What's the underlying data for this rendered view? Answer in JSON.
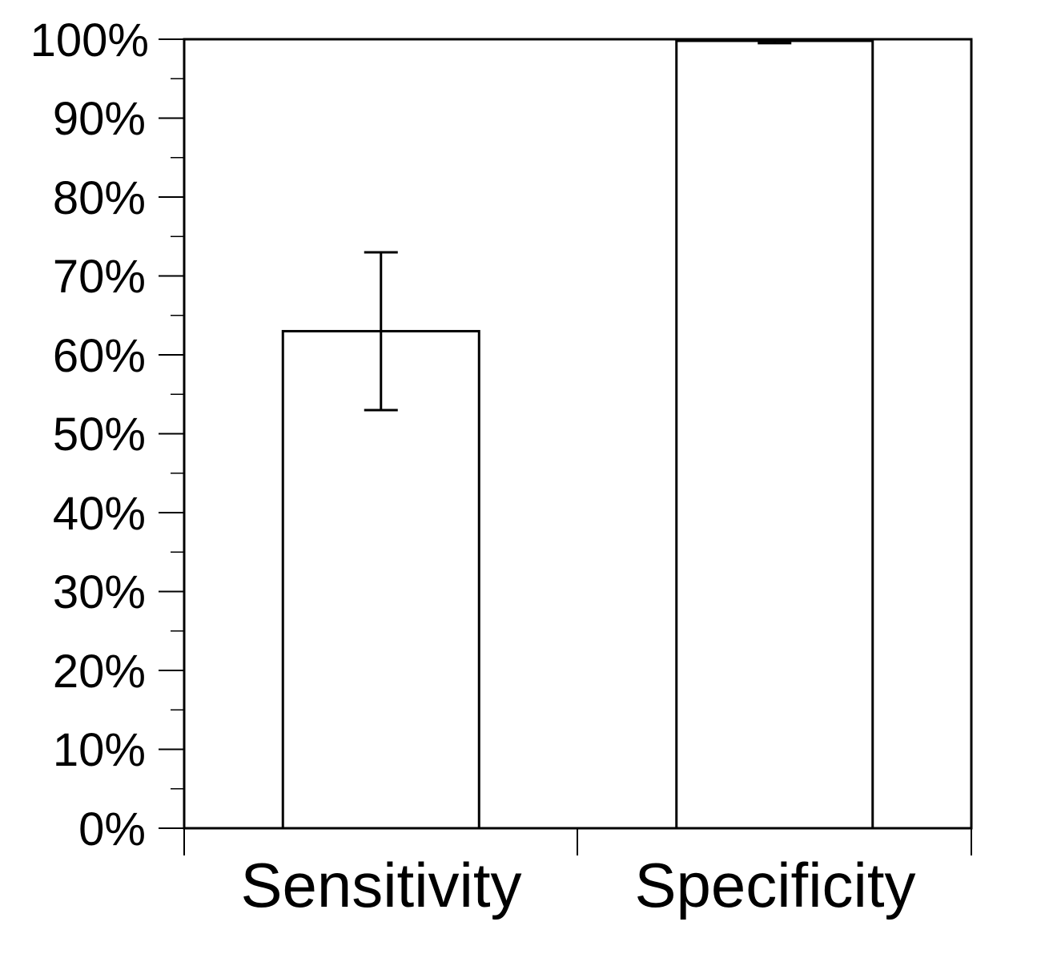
{
  "chart_data": {
    "type": "bar",
    "title": "",
    "xlabel": "",
    "ylabel": "",
    "categories": [
      "Sensitivity",
      "Specificity"
    ],
    "values": [
      63,
      99.8
    ],
    "error_bars": [
      {
        "category": "Sensitivity",
        "low": 53,
        "high": 73
      },
      {
        "category": "Specificity",
        "low": 99.5,
        "high": 100
      }
    ],
    "ylim": [
      0,
      100
    ],
    "y_unit": "%",
    "y_major_ticks": [
      0,
      10,
      20,
      30,
      40,
      50,
      60,
      70,
      80,
      90,
      100
    ],
    "y_minor_ticks": [
      5,
      15,
      25,
      35,
      45,
      55,
      65,
      75,
      85,
      95
    ],
    "y_tick_labels": [
      "0%",
      "10%",
      "20%",
      "30%",
      "40%",
      "50%",
      "60%",
      "70%",
      "80%",
      "90%",
      "100%"
    ],
    "grid": false,
    "legend": null,
    "bar_fill": "#ffffff",
    "bar_stroke": "#000000"
  },
  "y_axis": {
    "labels": [
      "0%",
      "10%",
      "20%",
      "30%",
      "40%",
      "50%",
      "60%",
      "70%",
      "80%",
      "90%",
      "100%"
    ]
  },
  "x_axis": {
    "labels": [
      "Sensitivity",
      "Specificity"
    ]
  }
}
